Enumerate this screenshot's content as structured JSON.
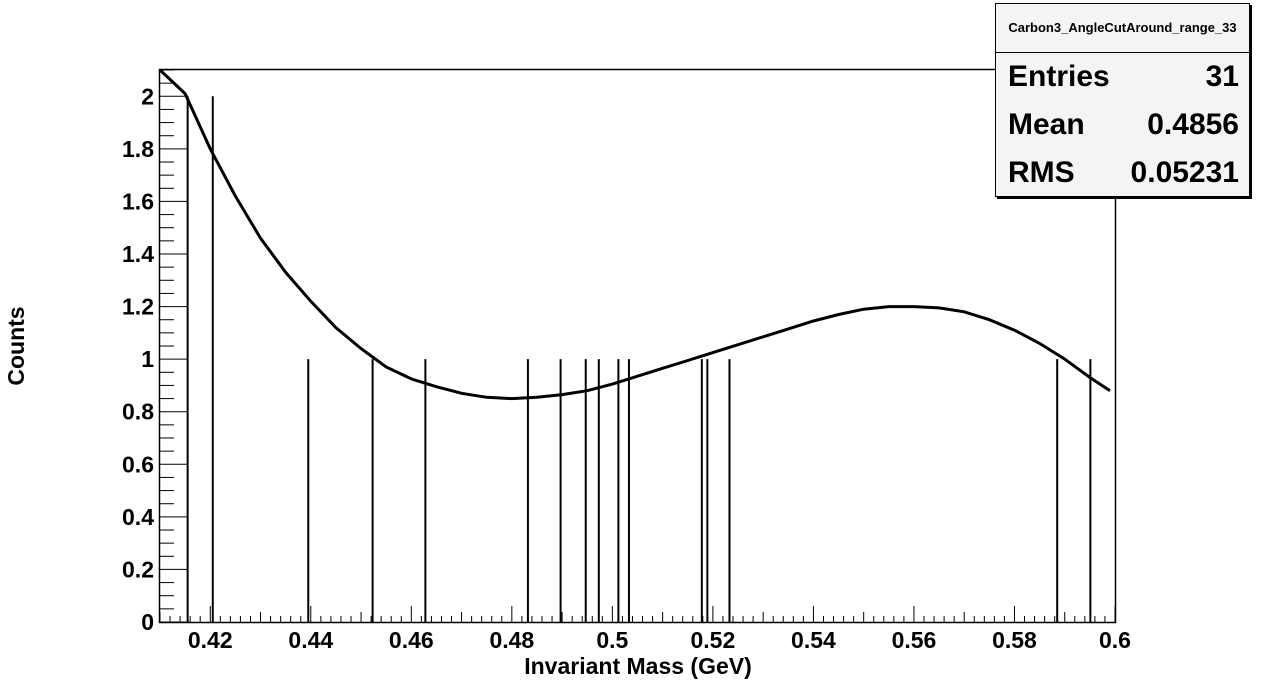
{
  "chart_data": {
    "type": "bar",
    "xlabel": "Invariant Mass (GeV)",
    "ylabel": "Counts",
    "xlim": [
      0.41,
      0.6
    ],
    "ylim": [
      0,
      2.1
    ],
    "grid": false,
    "x_ticks": [
      "0.42",
      "0.44",
      "0.46",
      "0.48",
      "0.5",
      "0.52",
      "0.54",
      "0.56",
      "0.58",
      "0.6"
    ],
    "y_ticks": [
      "0",
      "0.2",
      "0.4",
      "0.6",
      "0.8",
      "1",
      "1.2",
      "1.4",
      "1.6",
      "1.8",
      "2"
    ],
    "series": [
      {
        "x": [
          0.4155,
          0.4205,
          0.4395,
          0.4523,
          0.4628,
          0.4832,
          0.4897,
          0.4947,
          0.4973,
          0.5012,
          0.5033,
          0.5178,
          0.5189,
          0.5233,
          0.5885,
          0.5951
        ],
        "values": [
          2,
          2,
          1,
          1,
          1,
          1,
          1,
          1,
          1,
          1,
          1,
          1,
          1,
          1,
          1,
          1
        ]
      }
    ],
    "fit_curve": {
      "x": [
        0.41,
        0.415,
        0.42,
        0.425,
        0.43,
        0.435,
        0.44,
        0.445,
        0.45,
        0.455,
        0.46,
        0.465,
        0.47,
        0.475,
        0.48,
        0.485,
        0.49,
        0.495,
        0.5,
        0.505,
        0.51,
        0.515,
        0.52,
        0.525,
        0.53,
        0.535,
        0.54,
        0.545,
        0.55,
        0.555,
        0.56,
        0.565,
        0.57,
        0.575,
        0.58,
        0.585,
        0.59,
        0.595,
        0.599
      ],
      "y": [
        2.1,
        2.01,
        1.8,
        1.62,
        1.46,
        1.33,
        1.22,
        1.12,
        1.04,
        0.97,
        0.925,
        0.895,
        0.87,
        0.855,
        0.85,
        0.855,
        0.865,
        0.88,
        0.905,
        0.935,
        0.965,
        0.995,
        1.025,
        1.055,
        1.085,
        1.115,
        1.145,
        1.17,
        1.19,
        1.2,
        1.2,
        1.195,
        1.18,
        1.15,
        1.11,
        1.06,
        1.0,
        0.93,
        0.88
      ]
    }
  },
  "stats": {
    "title": "Carbon3_AngleCutAround_range_33",
    "rows": [
      {
        "label": "Entries",
        "value": "31"
      },
      {
        "label": "Mean",
        "value": "0.4856"
      },
      {
        "label": "RMS",
        "value": "0.05231"
      }
    ]
  }
}
